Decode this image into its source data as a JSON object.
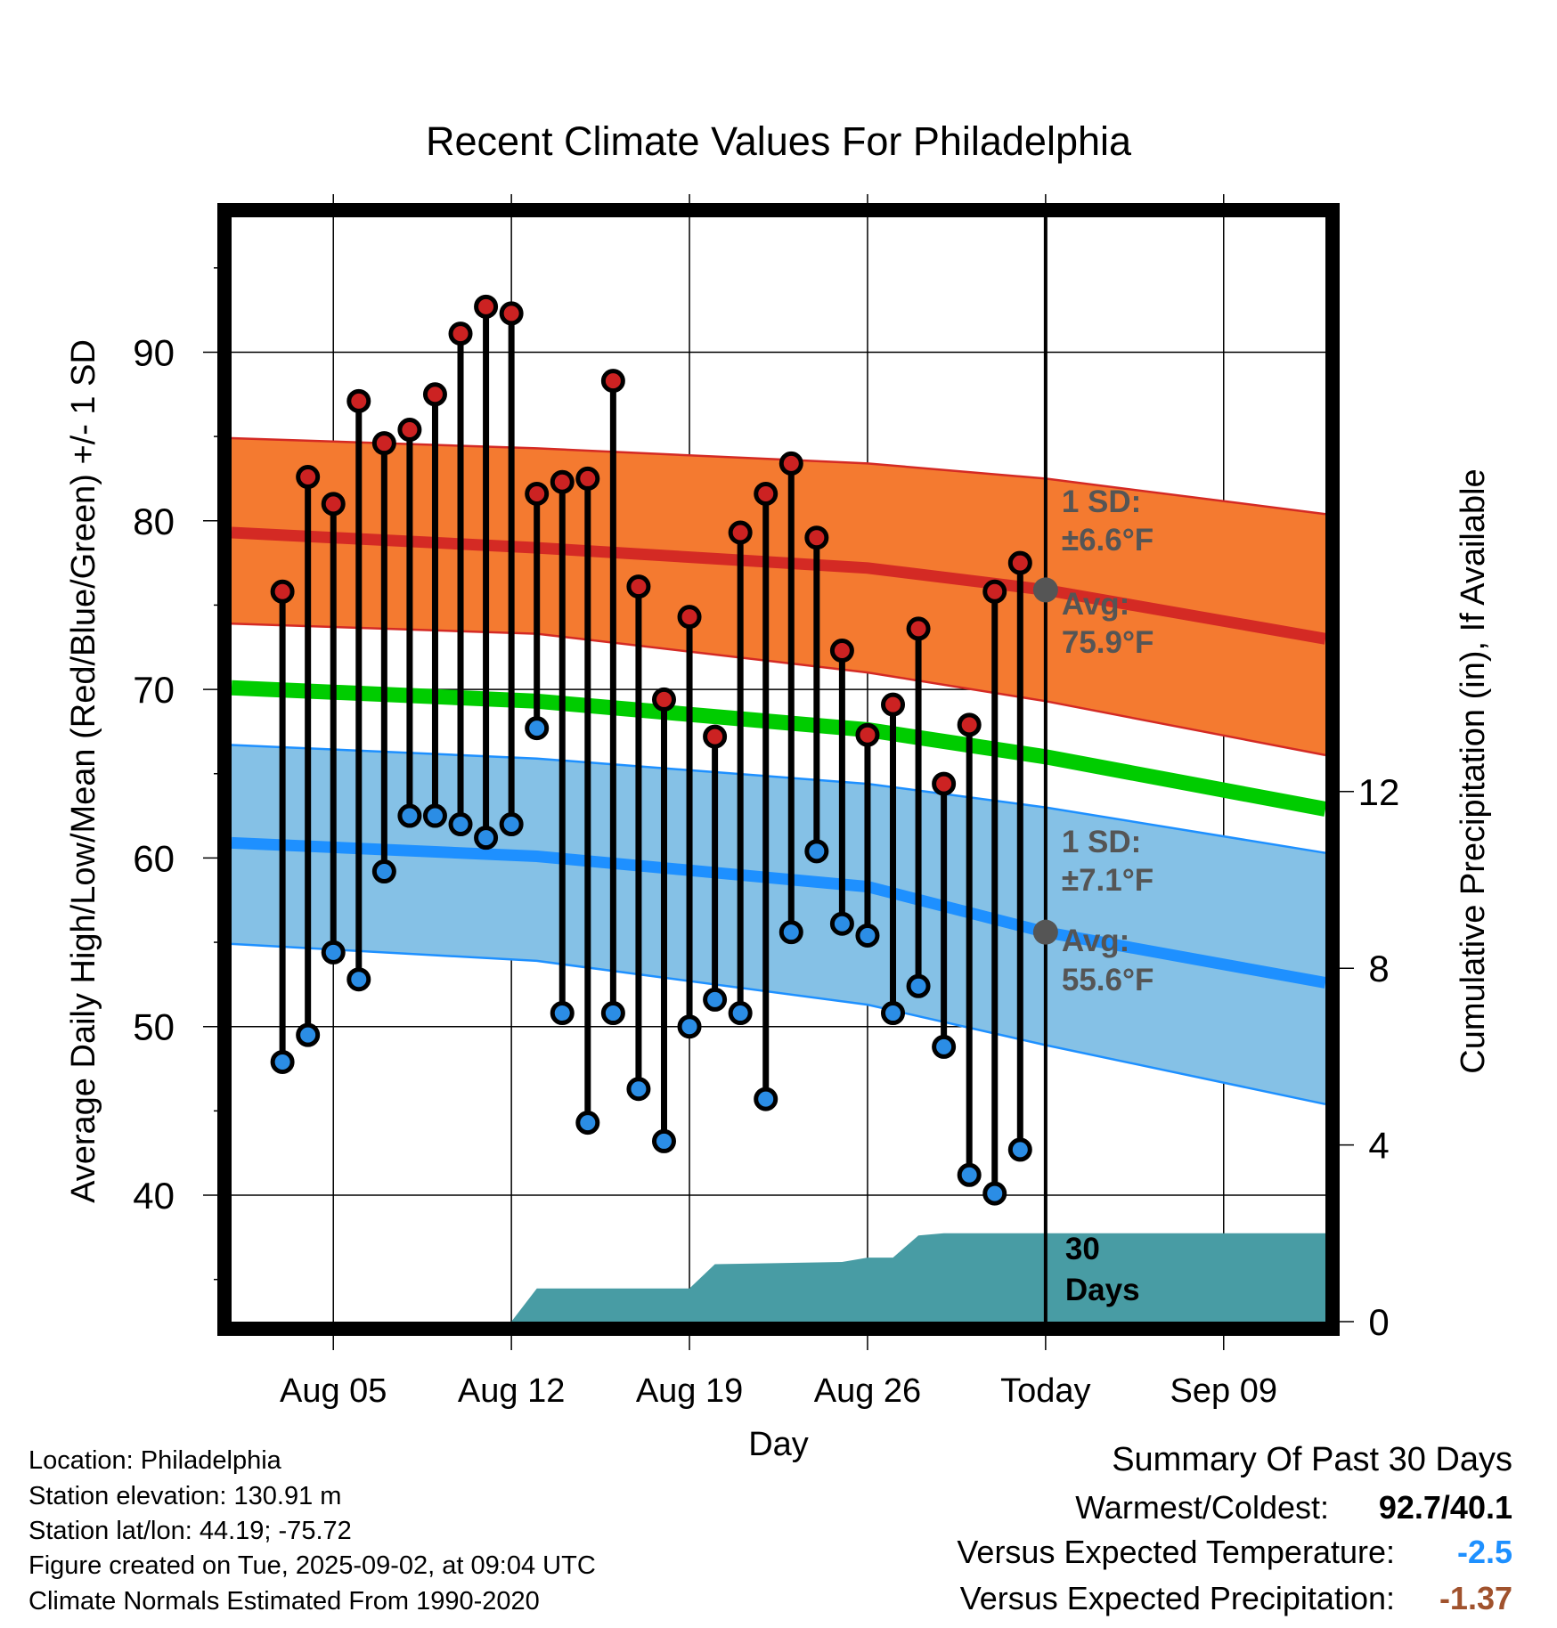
{
  "chart_data": {
    "type": "line",
    "title": "Recent Climate Values For Philadelphia",
    "xlabel": "Day",
    "ylabel": "Average Daily High/Low/Mean (Red/Blue/Green) +/- 1 SD",
    "y2label": "Cumulative Precipitation (in), If Available",
    "ylim": [
      32.5,
      98
    ],
    "y2lim": [
      0,
      25
    ],
    "xlim": [
      "2025-08-01",
      "2025-09-13"
    ],
    "x_tick_labels": [
      "Aug 05",
      "Aug 12",
      "Aug 19",
      "Aug 26",
      "Today",
      "Sep 09"
    ],
    "x_tick_dates": [
      "2025-08-05",
      "2025-08-12",
      "2025-08-19",
      "2025-08-26",
      "2025-09-02",
      "2025-09-09"
    ],
    "y_tick_labels": [
      "40",
      "50",
      "60",
      "70",
      "80",
      "90"
    ],
    "y2_tick_labels": [
      "0",
      "4",
      "8",
      "12"
    ],
    "grid": true,
    "today_date": "2025-09-02",
    "daily_dates": [
      "2025-08-03",
      "2025-08-04",
      "2025-08-05",
      "2025-08-06",
      "2025-08-07",
      "2025-08-08",
      "2025-08-09",
      "2025-08-10",
      "2025-08-11",
      "2025-08-12",
      "2025-08-13",
      "2025-08-14",
      "2025-08-15",
      "2025-08-16",
      "2025-08-17",
      "2025-08-18",
      "2025-08-19",
      "2025-08-20",
      "2025-08-21",
      "2025-08-22",
      "2025-08-23",
      "2025-08-24",
      "2025-08-25",
      "2025-08-26",
      "2025-08-27",
      "2025-08-28",
      "2025-08-29",
      "2025-08-30",
      "2025-08-31",
      "2025-09-01"
    ],
    "daily_highs": [
      75.8,
      82.6,
      81.0,
      87.1,
      84.6,
      85.4,
      87.5,
      91.1,
      92.7,
      92.3,
      81.6,
      82.3,
      82.5,
      88.3,
      76.1,
      69.4,
      74.3,
      67.2,
      79.3,
      81.6,
      83.4,
      79.0,
      72.3,
      67.3,
      69.1,
      73.6,
      64.4,
      67.9,
      75.8,
      77.5
    ],
    "daily_lows": [
      47.9,
      49.5,
      54.4,
      52.8,
      59.2,
      62.5,
      62.5,
      62.0,
      61.2,
      62.0,
      67.7,
      50.8,
      44.3,
      50.8,
      46.3,
      43.2,
      50.0,
      51.6,
      50.8,
      45.7,
      55.6,
      60.4,
      56.1,
      55.4,
      50.8,
      52.4,
      48.8,
      41.2,
      40.1,
      42.7
    ],
    "normal_dates": [
      "2025-08-01",
      "2025-08-13",
      "2025-08-26",
      "2025-09-02",
      "2025-09-13"
    ],
    "normal_high": [
      79.3,
      78.4,
      77.2,
      75.9,
      73.0
    ],
    "normal_high_upper": [
      84.9,
      84.3,
      83.4,
      82.5,
      80.4
    ],
    "normal_high_lower": [
      73.9,
      73.3,
      71.0,
      69.3,
      66.1
    ],
    "normal_mean": [
      70.1,
      69.3,
      67.6,
      66.0,
      62.9
    ],
    "normal_low": [
      60.9,
      60.1,
      58.3,
      55.6,
      52.6
    ],
    "normal_low_upper": [
      66.7,
      65.9,
      64.4,
      63.0,
      60.3
    ],
    "normal_low_lower": [
      54.9,
      53.9,
      51.3,
      48.9,
      45.4
    ],
    "precip_dates": [
      "2025-08-12",
      "2025-08-13",
      "2025-08-19",
      "2025-08-20",
      "2025-08-25",
      "2025-08-26",
      "2025-08-27",
      "2025-08-28",
      "2025-08-29",
      "2025-09-13"
    ],
    "precip_cumulative": [
      0.0,
      0.75,
      0.75,
      1.3,
      1.35,
      1.45,
      1.45,
      1.95,
      2.0,
      2.0
    ],
    "annotations": {
      "high_sd": "1 SD:",
      "high_sd_value": "±6.6°F",
      "high_avg": "Avg:",
      "high_avg_value": "75.9°F",
      "low_sd": "1 SD:",
      "low_sd_value": "±7.1°F",
      "low_avg": "Avg:",
      "low_avg_value": "55.6°F",
      "days_line1": "30",
      "days_line2": "Days"
    },
    "colors": {
      "high_band": "#f47a30",
      "high_line": "#d42a24",
      "low_band": "#85c1e6",
      "low_line": "#1e90ff",
      "mean_line": "#00cc00",
      "precip": "#489ca4",
      "high_dot": "#cc2222",
      "low_dot": "#2b8de5",
      "annotation_text": "#555555"
    }
  },
  "footer": {
    "location": "Location: Philadelphia",
    "elevation": "Station elevation: 130.91 m",
    "latlon": "Station lat/lon: 44.19; -75.72",
    "created": "Figure created on Tue, 2025-09-02, at 09:04 UTC",
    "normals": "Climate Normals Estimated From 1990-2020"
  },
  "summary": {
    "title": "Summary Of Past 30 Days",
    "warm_cold_label": "Warmest/Coldest:",
    "warm_cold_value": "92.7/40.1",
    "temp_label": "Versus Expected Temperature:",
    "temp_value": "-2.5",
    "precip_label": "Versus Expected Precipitation:",
    "precip_value": "-1.37",
    "temp_color": "#1e90ff",
    "precip_color": "#a0522d"
  }
}
